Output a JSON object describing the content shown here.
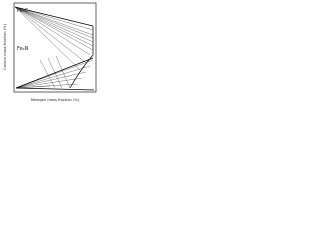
{
  "diagram": {
    "x_axis_label": "Nitrogen mass fraction (%)",
    "y_axis_label": "Carbon mass fraction (%)",
    "regions": [
      {
        "label": "Fe₃C"
      },
      {
        "label": "Fe₄N"
      }
    ]
  }
}
